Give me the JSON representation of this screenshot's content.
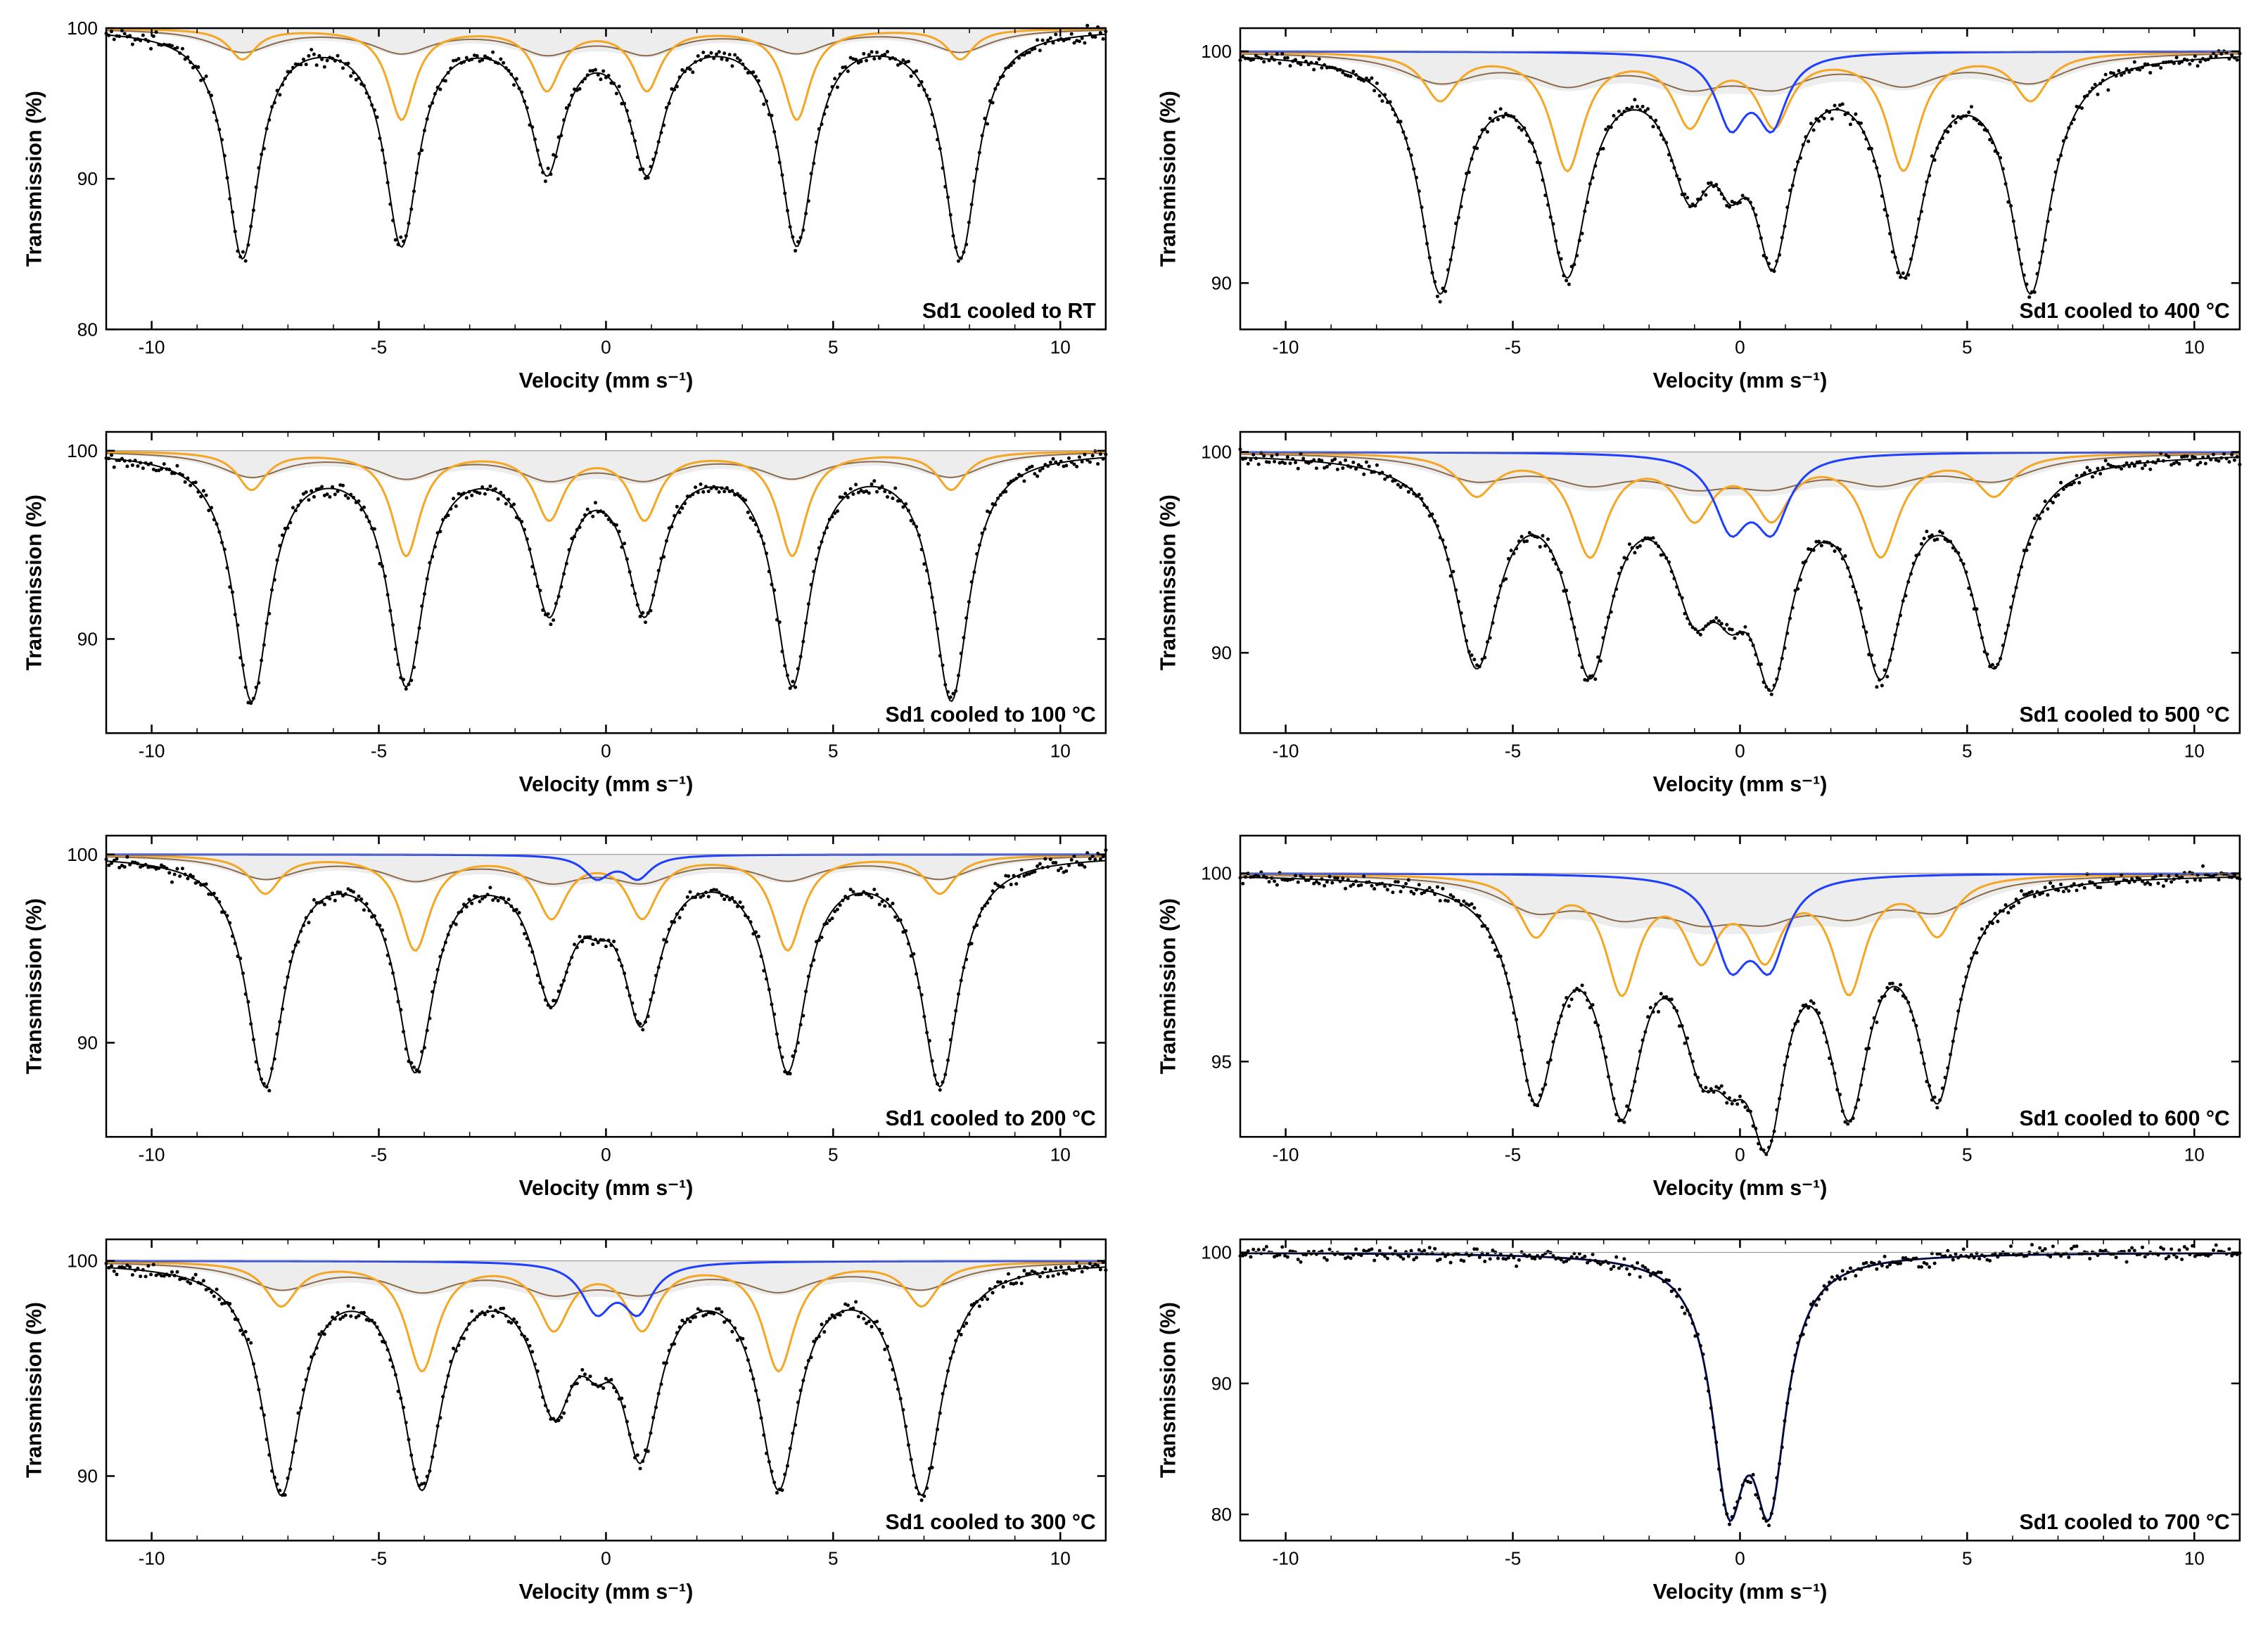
{
  "global": {
    "xlabel": "Velocity (mm s⁻¹)",
    "ylabel": "Transmission (%)",
    "xlim": [
      -11,
      11
    ],
    "xticks": [
      -10,
      -5,
      0,
      5,
      10
    ],
    "background_color": "#ffffff",
    "axis_color": "#000000",
    "data_point_color": "#000000",
    "fit_total_color": "#000000",
    "component_orange": "#f5a623",
    "component_blue": "#1f3fff",
    "component_brown": "#8b6b4a",
    "fill_gray": "#dcdcdc",
    "fill_opacity": 0.5,
    "tick_fontsize": 26,
    "label_fontsize": 30,
    "title_fontsize": 30,
    "line_width": 3,
    "marker_size": 2.5
  },
  "panels": [
    {
      "id": "p0",
      "title": "Sd1 cooled to RT",
      "ylim": [
        80,
        100
      ],
      "yticks": [
        80,
        90,
        100
      ],
      "sextet_positions": [
        -8.0,
        -4.5,
        -1.3,
        0.9,
        4.2,
        7.8
      ],
      "sextet_depths_total": [
        15,
        14,
        9,
        9,
        14,
        15
      ],
      "sextet_widths": [
        0.45,
        0.45,
        0.45,
        0.45,
        0.45,
        0.45
      ],
      "orange_depths": [
        2,
        6,
        4,
        4,
        6,
        2
      ],
      "brown_depths": [
        1.5,
        1.5,
        1.5,
        1.5,
        1.5,
        1.5
      ],
      "gray_band": true,
      "doublet": null
    },
    {
      "id": "p1",
      "title": "Sd1 cooled to 400 °C",
      "ylim": [
        88,
        101
      ],
      "yticks": [
        90,
        100
      ],
      "sextet_positions": [
        -6.6,
        -3.8,
        -1.1,
        0.75,
        3.6,
        6.4
      ],
      "sextet_depths_total": [
        10,
        9,
        5,
        5,
        9,
        10
      ],
      "sextet_widths": [
        0.55,
        0.55,
        0.55,
        0.55,
        0.55,
        0.55
      ],
      "orange_depths": [
        2,
        5,
        3,
        3,
        5,
        2
      ],
      "brown_depths": [
        1.2,
        1.2,
        1.2,
        1.2,
        1.2,
        1.2
      ],
      "gray_band": true,
      "doublet": {
        "positions": [
          -0.2,
          0.7
        ],
        "depth": 3,
        "width": 0.4
      }
    },
    {
      "id": "p2",
      "title": "Sd1 cooled to 100 °C",
      "ylim": [
        85,
        101
      ],
      "yticks": [
        90,
        100
      ],
      "sextet_positions": [
        -7.8,
        -4.4,
        -1.25,
        0.85,
        4.1,
        7.6
      ],
      "sextet_depths_total": [
        13,
        12,
        8,
        8,
        12,
        13
      ],
      "sextet_widths": [
        0.48,
        0.48,
        0.48,
        0.48,
        0.48,
        0.48
      ],
      "orange_depths": [
        2,
        5.5,
        3.5,
        3.5,
        5.5,
        2
      ],
      "brown_depths": [
        1.3,
        1.3,
        1.3,
        1.3,
        1.3,
        1.3
      ],
      "gray_band": true,
      "doublet": null
    },
    {
      "id": "p3",
      "title": "Sd1 cooled to 500 °C",
      "ylim": [
        86,
        101
      ],
      "yticks": [
        90,
        100
      ],
      "sextet_positions": [
        -5.8,
        -3.3,
        -1.0,
        0.7,
        3.1,
        5.6
      ],
      "sextet_depths_total": [
        10,
        10,
        6,
        6,
        10,
        10
      ],
      "sextet_widths": [
        0.6,
        0.6,
        0.6,
        0.6,
        0.6,
        0.6
      ],
      "orange_depths": [
        2,
        5,
        3,
        3,
        5,
        2
      ],
      "brown_depths": [
        1.2,
        1.2,
        1.2,
        1.2,
        1.2,
        1.2
      ],
      "gray_band": true,
      "doublet": {
        "positions": [
          -0.2,
          0.7
        ],
        "depth": 3.5,
        "width": 0.45
      }
    },
    {
      "id": "p4",
      "title": "Sd1 cooled to 200 °C",
      "ylim": [
        85,
        101
      ],
      "yticks": [
        90,
        100
      ],
      "sextet_positions": [
        -7.5,
        -4.2,
        -1.2,
        0.8,
        4.0,
        7.35
      ],
      "sextet_depths_total": [
        12,
        11,
        7,
        7,
        11,
        12
      ],
      "sextet_widths": [
        0.5,
        0.5,
        0.5,
        0.5,
        0.5,
        0.5
      ],
      "orange_depths": [
        2,
        5,
        3.2,
        3.2,
        5,
        2
      ],
      "brown_depths": [
        1.2,
        1.2,
        1.2,
        1.2,
        1.2,
        1.2
      ],
      "gray_band": true,
      "doublet": {
        "positions": [
          -0.2,
          0.7
        ],
        "depth": 1.2,
        "width": 0.35
      }
    },
    {
      "id": "p5",
      "title": "Sd1 cooled to 600 °C",
      "ylim": [
        93,
        101
      ],
      "yticks": [
        95,
        100
      ],
      "sextet_positions": [
        -4.5,
        -2.6,
        -0.85,
        0.55,
        2.4,
        4.35
      ],
      "sextet_depths_total": [
        5.5,
        5.5,
        3.5,
        3.5,
        5.5,
        5.5
      ],
      "sextet_widths": [
        0.55,
        0.55,
        0.55,
        0.55,
        0.55,
        0.55
      ],
      "orange_depths": [
        1.5,
        3,
        2,
        2,
        3,
        1.5
      ],
      "brown_depths": [
        0.8,
        0.8,
        0.8,
        0.8,
        0.8,
        0.8
      ],
      "gray_band": true,
      "doublet": {
        "positions": [
          -0.2,
          0.65
        ],
        "depth": 2.2,
        "width": 0.45
      }
    },
    {
      "id": "p6",
      "title": "Sd1 cooled to 300 °C",
      "ylim": [
        87,
        101
      ],
      "yticks": [
        90,
        100
      ],
      "sextet_positions": [
        -7.15,
        -4.05,
        -1.15,
        0.8,
        3.8,
        6.95
      ],
      "sextet_depths_total": [
        10.5,
        10,
        6,
        6,
        10,
        10.5
      ],
      "sextet_widths": [
        0.53,
        0.53,
        0.53,
        0.53,
        0.53,
        0.53
      ],
      "orange_depths": [
        2,
        5,
        3,
        3,
        5,
        2
      ],
      "brown_depths": [
        1.2,
        1.2,
        1.2,
        1.2,
        1.2,
        1.2
      ],
      "gray_band": true,
      "doublet": {
        "positions": [
          -0.2,
          0.7
        ],
        "depth": 2.2,
        "width": 0.4
      }
    },
    {
      "id": "p7",
      "title": "Sd1 cooled to 700 °C",
      "ylim": [
        78,
        101
      ],
      "yticks": [
        80,
        90,
        100
      ],
      "sextet_positions": [],
      "sextet_depths_total": [],
      "sextet_widths": [],
      "orange_depths": [],
      "brown_depths": [],
      "gray_band": false,
      "doublet": {
        "positions": [
          -0.25,
          0.65
        ],
        "depth": 17,
        "width": 0.45
      }
    }
  ]
}
